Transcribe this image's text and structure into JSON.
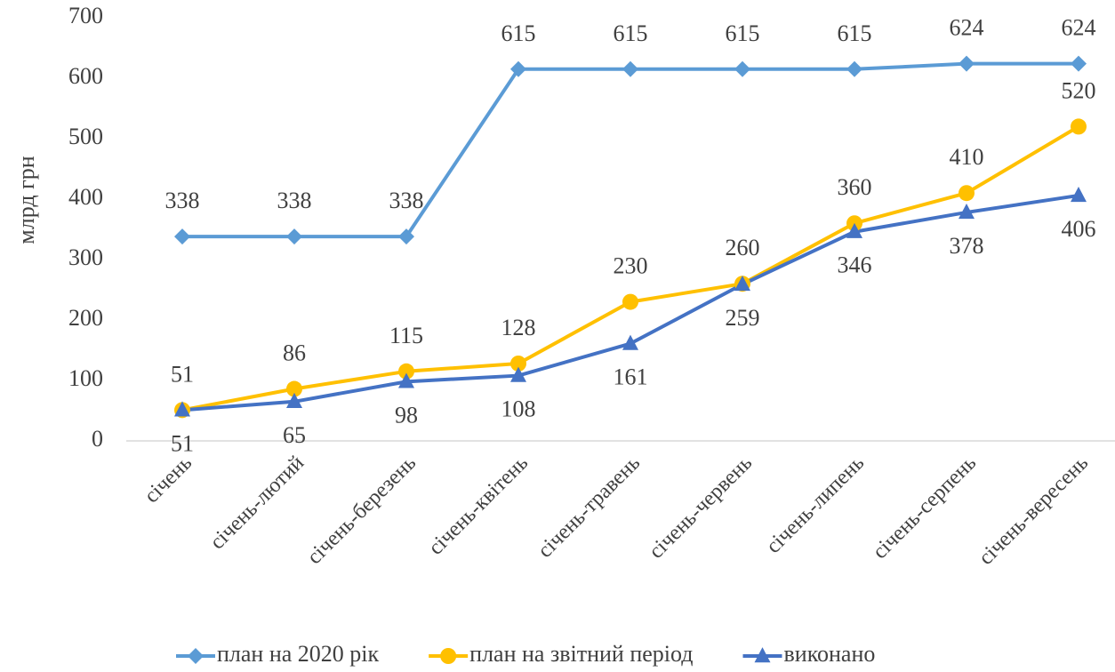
{
  "chart_data": {
    "type": "line",
    "y_label": "млрд грн",
    "categories": [
      "січень",
      "січень-лютий",
      "січень-березень",
      "січень-квітень",
      "січень-травень",
      "січень-червень",
      "січень-липень",
      "січень-серпень",
      "січень-вересень"
    ],
    "series": [
      {
        "name": "план на 2020 рік",
        "color": "#5b9bd5",
        "marker": "diamond",
        "label_position": "above",
        "values": [
          338,
          338,
          338,
          615,
          615,
          615,
          615,
          624,
          624
        ]
      },
      {
        "name": "план на звітний період",
        "color": "#ffc000",
        "marker": "circle",
        "label_position": "above",
        "values": [
          51,
          86,
          115,
          128,
          230,
          260,
          360,
          410,
          520
        ]
      },
      {
        "name": "виконано",
        "color": "#4472c4",
        "marker": "triangle",
        "label_position": "below",
        "values": [
          51,
          65,
          98,
          108,
          161,
          259,
          346,
          378,
          406
        ]
      }
    ],
    "ylim": [
      0,
      700
    ],
    "yticks": [
      0,
      100,
      200,
      300,
      400,
      500,
      600,
      700
    ],
    "legend": "bottom"
  }
}
